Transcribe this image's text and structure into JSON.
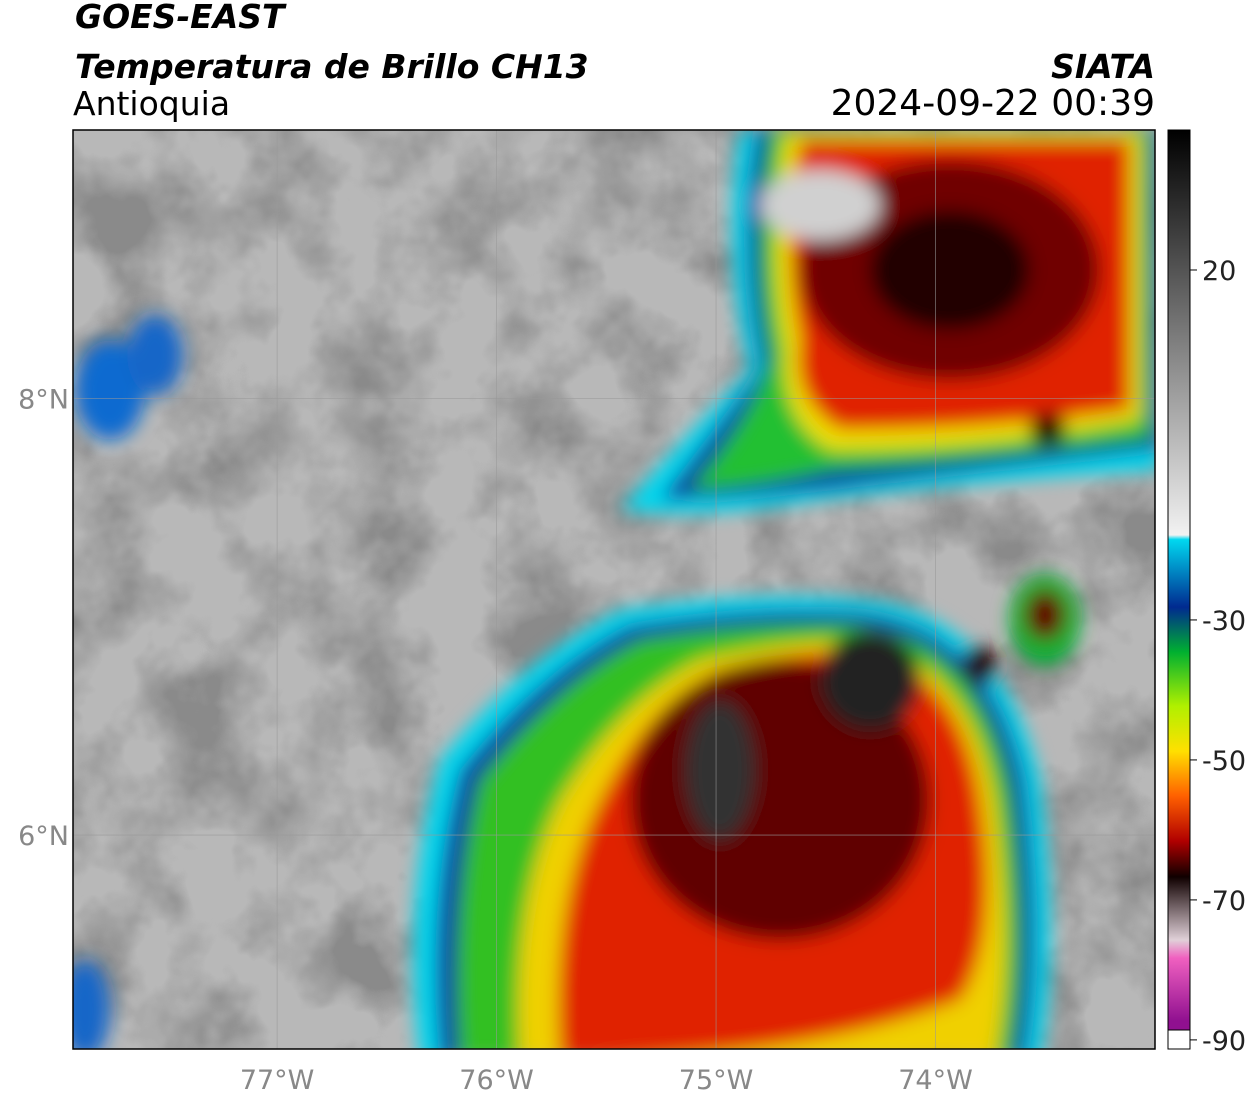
{
  "header": {
    "title": "GOES-EAST",
    "subtitle": "Temperatura de Brillo CH13",
    "region": "Antioquia",
    "source": "SIATA",
    "datetime": "2024-09-22 00:39"
  },
  "map": {
    "lonlim": [
      -77.93,
      -73.0
    ],
    "latlim": [
      5.02,
      9.23
    ],
    "lon_ticks": [
      {
        "value": -77,
        "label": "77°W"
      },
      {
        "value": -76,
        "label": "76°W"
      },
      {
        "value": -75,
        "label": "75°W"
      },
      {
        "value": -74,
        "label": "74°W"
      }
    ],
    "lat_ticks": [
      {
        "value": 8,
        "label": "8°N"
      },
      {
        "value": 6,
        "label": "6°N"
      }
    ],
    "grid": true
  },
  "colorbar": {
    "lim": [
      -91.3,
      40
    ],
    "ticks": [
      20,
      -30,
      -50,
      -70,
      -90
    ]
  }
}
